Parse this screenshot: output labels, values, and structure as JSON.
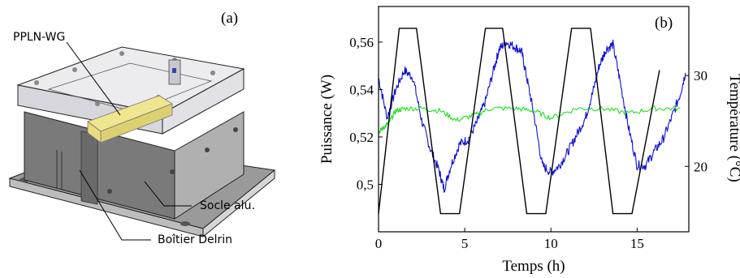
{
  "panel_a": {
    "panel_label": "(a)",
    "callouts": {
      "waveguide": "PPLN-WG",
      "base": "Socle alu.",
      "housing": "Boîtier Delrin"
    }
  },
  "chart_data": {
    "type": "line",
    "panel_label": "(b)",
    "xlabel": "Temps (h)",
    "ylabel": "Puissance (W)",
    "y2label": "Température (°C)",
    "xlim": [
      0,
      18
    ],
    "ylim": [
      0.48,
      0.575
    ],
    "y2lim": [
      12.8,
      37.6
    ],
    "xticks": [
      0,
      5,
      10,
      15
    ],
    "xtick_labels": [
      "0",
      "5",
      "10",
      "15"
    ],
    "yticks": [
      0.5,
      0.52,
      0.54,
      0.56
    ],
    "ytick_labels": [
      "0,5",
      "0,52",
      "0,54",
      "0,56"
    ],
    "y2ticks": [
      20,
      30
    ],
    "y2tick_labels": [
      "20",
      "30"
    ],
    "colors": {
      "temperature": "#000000",
      "power_blue": "#1010cc",
      "power_green": "#22dd22"
    },
    "series": [
      {
        "axis": "right",
        "color": "#000000",
        "x": [
          0,
          1.2,
          2.2,
          3.6,
          4.7,
          6.2,
          7.2,
          8.6,
          9.7,
          11.2,
          12.3,
          13.6,
          14.7,
          16.3
        ],
        "y": [
          14.8,
          35.2,
          35.2,
          14.8,
          14.8,
          35.2,
          35.2,
          14.8,
          14.8,
          35.2,
          35.2,
          14.8,
          14.8,
          30.6
        ]
      },
      {
        "axis": "left",
        "color": "#1010cc",
        "x": [
          0,
          0.5,
          1.0,
          1.5,
          2.0,
          2.5,
          3.0,
          3.5,
          3.8,
          4.2,
          4.7,
          5.2,
          5.7,
          6.2,
          6.7,
          7.0,
          7.4,
          7.9,
          8.3,
          8.6,
          9.0,
          9.5,
          10.0,
          10.5,
          11.0,
          11.5,
          12.0,
          12.4,
          12.8,
          13.2,
          13.6,
          14.0,
          14.5,
          15.0,
          15.5,
          16.0,
          16.5,
          17.0,
          17.5,
          17.8
        ],
        "y": [
          0.545,
          0.528,
          0.54,
          0.548,
          0.545,
          0.527,
          0.515,
          0.506,
          0.498,
          0.508,
          0.517,
          0.519,
          0.526,
          0.535,
          0.549,
          0.557,
          0.56,
          0.558,
          0.556,
          0.545,
          0.53,
          0.508,
          0.505,
          0.508,
          0.514,
          0.521,
          0.528,
          0.538,
          0.55,
          0.557,
          0.559,
          0.544,
          0.524,
          0.508,
          0.508,
          0.514,
          0.519,
          0.528,
          0.538,
          0.547
        ]
      },
      {
        "axis": "left",
        "color": "#22dd22",
        "x": [
          0,
          0.3,
          0.6,
          1.0,
          1.5,
          2.5,
          3.6,
          4.5,
          5.5,
          6.5,
          8.0,
          9.0,
          10.0,
          11.5,
          13.0,
          14.5,
          16.0,
          17.5
        ],
        "y": [
          0.522,
          0.524,
          0.526,
          0.531,
          0.532,
          0.532,
          0.531,
          0.527,
          0.529,
          0.532,
          0.532,
          0.531,
          0.528,
          0.532,
          0.532,
          0.53,
          0.532,
          0.532
        ]
      }
    ]
  }
}
